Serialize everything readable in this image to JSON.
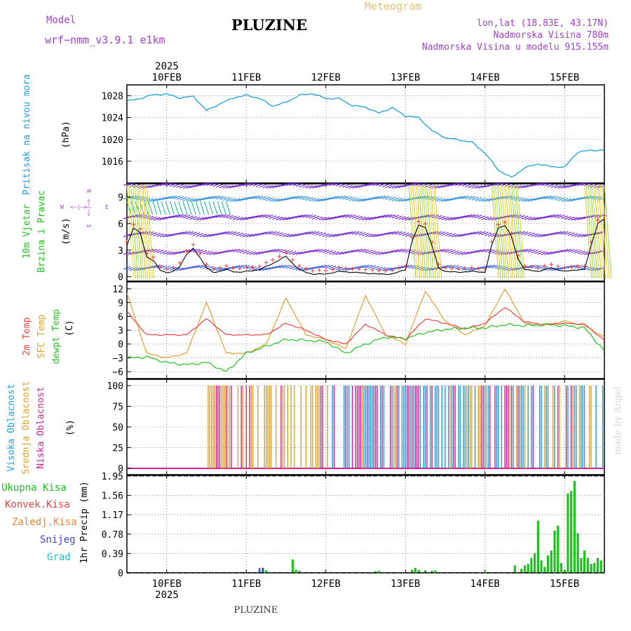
{
  "header": {
    "model_label": "Model",
    "model_name": "wrf−nmm_v3.9.1  e1km",
    "station": "PLUZINE",
    "product": "Meteogram",
    "coords": "lon,lat (18.83E, 43.17N)",
    "elevation": "Nadmorska Visina 780m",
    "model_elevation": "Nadmorska Visina u modelu 915.155m",
    "footer_station": "PLUZINE",
    "watermark": "made by Angel"
  },
  "time_axis": {
    "year_top": "2025",
    "year_bottom": "2025",
    "day_labels": [
      "10FEB",
      "11FEB",
      "12FEB",
      "13FEB",
      "14FEB",
      "15FEB"
    ],
    "day_offsets_h": [
      12,
      36,
      60,
      84,
      108,
      132
    ],
    "start": "09FEB 12Z",
    "end": "15FEB 12Z",
    "total_hours": 144
  },
  "panels": {
    "pressure": {
      "ylabel": "Pritisak na nivou mora",
      "unit": "(hPa)",
      "ticks": [
        "1028",
        "1024",
        "1020",
        "1016"
      ],
      "color": "#1a9ee0"
    },
    "wind": {
      "ylabel1": "10m Vjetar",
      "ylabel2": "Brzina i Pravac",
      "unit": "(m/s)",
      "ticks": [
        "9",
        "6",
        "3",
        "0"
      ],
      "compass_n": "N",
      "compass_w": "W",
      "compass_e": "E",
      "compass_s": "S",
      "compass_arrow_lr": "<—|—>",
      "compass_arrow_ud": "<—|—>"
    },
    "temperature": {
      "label_2m": "2m Temp",
      "label_sfc": "SFC Temp",
      "label_dew": "dewpt Temp",
      "unit": "(C)",
      "ticks": [
        "12",
        "9",
        "6",
        "3",
        "0",
        "−3",
        "−6"
      ]
    },
    "cloud": {
      "label_high": "Visoka Oblacnost",
      "label_mid": "Srednja Oblacnost",
      "label_low": "Niska Oblacnost",
      "unit": "(%)",
      "ticks": [
        "100",
        "75",
        "50",
        "25",
        "0"
      ]
    },
    "precip": {
      "label_total": "Ukupna Kisa",
      "label_conv": "Konvek.Kisa",
      "label_frz": "Zaledj.Kisa",
      "label_snow": "Snijeg",
      "label_hail": "Grad",
      "ylabel": "1hr Precip (mm)",
      "ticks": [
        "1.95",
        "1.56",
        "1.17",
        "0.78",
        "0.39",
        "0"
      ]
    }
  },
  "colors": {
    "pressure": "#1a9ee0",
    "t2m": "#f04040",
    "tsfc": "#e0a030",
    "tdew": "#20c020",
    "cloud_high": "#1a9ee0",
    "cloud_mid": "#e0a030",
    "cloud_low": "#d02090",
    "precip_total": "#20c020",
    "precip_conv": "#f04040",
    "precip_frz": "#f08030",
    "precip_snow": "#4040e0",
    "precip_hail": "#20c0c0",
    "wind_speed_line": "#000000",
    "wind_gust_marker": "#f04040",
    "title_purple": "#a040d0",
    "meteogram_orange": "#e8c070"
  },
  "chart_data": [
    {
      "type": "line",
      "name": "pressure",
      "x_hours": [
        0,
        4,
        8,
        12,
        16,
        20,
        24,
        28,
        32,
        36,
        40,
        44,
        48,
        52,
        56,
        60,
        64,
        68,
        72,
        76,
        80,
        84,
        88,
        92,
        96,
        100,
        104,
        108,
        112,
        116,
        120,
        124,
        128,
        132,
        136,
        140,
        144
      ],
      "values": [
        1027,
        1027.5,
        1028.2,
        1028.3,
        1027.6,
        1027.9,
        1025.3,
        1026.5,
        1027.6,
        1028.1,
        1027.5,
        1026.1,
        1026.8,
        1028.1,
        1028.4,
        1027.5,
        1027.5,
        1026.2,
        1025.9,
        1024.8,
        1025.8,
        1024.3,
        1024,
        1021.6,
        1020.3,
        1019.9,
        1019.5,
        1017.5,
        1014.4,
        1013,
        1014.8,
        1015.5,
        1015,
        1014.9,
        1017.7,
        1018,
        1018
      ],
      "ylim": [
        1012,
        1030
      ]
    },
    {
      "type": "line",
      "name": "wind_speed",
      "x_hours": [
        0,
        2,
        4,
        6,
        8,
        10,
        12,
        14,
        16,
        18,
        20,
        22,
        24,
        26,
        28,
        30,
        32,
        34,
        36,
        40,
        44,
        48,
        50,
        52,
        54,
        56,
        60,
        64,
        68,
        72,
        76,
        80,
        84,
        86,
        88,
        90,
        92,
        94,
        96,
        100,
        104,
        108,
        110,
        112,
        114,
        116,
        118,
        120,
        124,
        128,
        132,
        136,
        138,
        140,
        142,
        144
      ],
      "values": [
        3.5,
        5.5,
        5,
        2.2,
        1.8,
        0.8,
        0.4,
        0.6,
        1.2,
        2.5,
        3.2,
        2.2,
        1,
        0.5,
        0.6,
        0.8,
        0.6,
        0.5,
        0.6,
        0.8,
        1.5,
        2.3,
        1.5,
        0.8,
        0.5,
        0.3,
        0.3,
        0.6,
        0.5,
        0.4,
        0.3,
        0.3,
        0.8,
        4,
        5.8,
        5.6,
        3.5,
        1,
        0.6,
        0.5,
        0.6,
        0.5,
        3.5,
        5.5,
        5.8,
        4.5,
        2,
        0.8,
        0.6,
        1,
        0.6,
        0.8,
        0.8,
        3.5,
        6,
        6.5
      ],
      "ylim": [
        -0.5,
        10.5
      ]
    },
    {
      "type": "line",
      "name": "temperature",
      "x_hours": [
        0,
        6,
        12,
        18,
        24,
        30,
        36,
        42,
        48,
        54,
        60,
        66,
        72,
        78,
        84,
        90,
        96,
        102,
        108,
        114,
        120,
        126,
        132,
        138,
        144
      ],
      "series": [
        {
          "key": "t2m",
          "values": [
            7,
            2,
            2,
            2,
            5.5,
            2,
            2,
            2,
            4.5,
            3,
            1,
            0,
            4.3,
            2,
            1,
            5.5,
            4.5,
            3.3,
            4.5,
            8,
            4.8,
            4.3,
            4.5,
            4.3,
            0.8
          ]
        },
        {
          "key": "tsfc",
          "values": [
            11,
            -2,
            -3,
            -2,
            9,
            -2,
            -2,
            0,
            10,
            2,
            1,
            -1,
            10.5,
            2,
            0,
            11.5,
            5,
            2,
            4,
            12,
            4.5,
            4,
            5,
            4,
            1.5
          ]
        },
        {
          "key": "tdew",
          "values": [
            -3,
            -2.8,
            -4,
            -4.5,
            -4,
            -6,
            -2,
            -0.5,
            1,
            0.8,
            0.5,
            -2,
            0,
            1.5,
            1.2,
            2.5,
            3.2,
            3.5,
            3.5,
            4.2,
            4,
            4.2,
            4,
            3.5,
            -1.5
          ]
        }
      ],
      "ylim": [
        -7.5,
        13.5
      ]
    },
    {
      "type": "bar",
      "name": "cloud_cover",
      "ylim": [
        0,
        100
      ]
    },
    {
      "type": "bar",
      "name": "precip_total",
      "x_hours": [
        40,
        41,
        42,
        50,
        51,
        52,
        75,
        76,
        86,
        87,
        88,
        90,
        92,
        93,
        108,
        117,
        119,
        120,
        121,
        122,
        123,
        124,
        125,
        126,
        127,
        128,
        129,
        130,
        131,
        132,
        133,
        134,
        135,
        136,
        137,
        138,
        139,
        140,
        141,
        142,
        143
      ],
      "values": [
        0.05,
        0.1,
        0.05,
        0.27,
        0.06,
        0.04,
        0.03,
        0.04,
        0.06,
        0.1,
        0.06,
        0.05,
        0.04,
        0.05,
        0.02,
        0.15,
        0.08,
        0.15,
        0.18,
        0.3,
        0.4,
        1.05,
        0.25,
        0.12,
        0.35,
        0.45,
        0.85,
        0.95,
        0.2,
        0.05,
        1.6,
        1.65,
        1.85,
        0.8,
        0.3,
        0.45,
        0.3,
        0.18,
        0.2,
        0.3,
        0.25
      ],
      "ylim": [
        0,
        1.95
      ]
    }
  ]
}
